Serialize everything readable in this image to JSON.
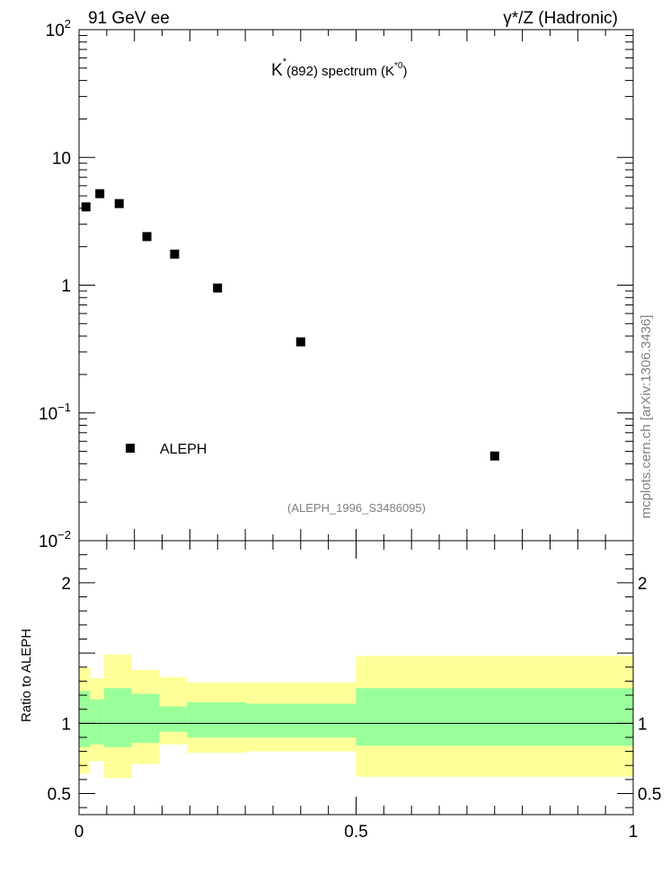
{
  "header": {
    "left": "91 GeV ee",
    "right": "γ*/Z (Hadronic)"
  },
  "side_label": "mcplots.cern.ch [arXiv:1306.3436]",
  "colors": {
    "marker": "#000000",
    "band_outer": "#ffff99",
    "band_inner": "#99ff99",
    "watermark_text": "#808080"
  },
  "chart_data": [
    {
      "type": "scatter",
      "title": "K*(892) spectrum (K*0)",
      "title_parts": {
        "base": "K",
        "sup1": "*",
        "rest": "(892) spectrum (K",
        "sup2": "*0",
        "close": ")"
      },
      "watermark": "(ALEPH_1996_S3486095)",
      "yscale": "log",
      "ylim": [
        0.01,
        100
      ],
      "xlim": [
        0,
        1
      ],
      "ytick_labels": [
        {
          "value": 100,
          "base": "10",
          "exp": "2"
        },
        {
          "value": 10,
          "base": "10",
          "exp": ""
        },
        {
          "value": 1,
          "base": "1",
          "exp": ""
        },
        {
          "value": 0.1,
          "base": "10",
          "exp": "−1"
        },
        {
          "value": 0.01,
          "base": "10",
          "exp": "−2"
        }
      ],
      "legend": {
        "position": "bottom-left",
        "label": "ALEPH"
      },
      "series": [
        {
          "name": "ALEPH",
          "x": [
            0.0125,
            0.0375,
            0.0725,
            0.1225,
            0.1725,
            0.25,
            0.4,
            0.75
          ],
          "y": [
            4.1,
            5.2,
            4.35,
            2.4,
            1.75,
            0.95,
            0.36,
            0.046
          ]
        }
      ]
    },
    {
      "type": "area",
      "ylabel": "Ratio to ALEPH",
      "ylim": [
        0.35,
        2.3
      ],
      "xlim": [
        0,
        1
      ],
      "ytick_labels": [
        {
          "value": 0.5,
          "label": "0.5"
        },
        {
          "value": 1,
          "label": "1"
        },
        {
          "value": 2,
          "label": "2"
        }
      ],
      "xtick_labels": [
        {
          "value": 0,
          "label": "0"
        },
        {
          "value": 0.5,
          "label": "0.5"
        },
        {
          "value": 1,
          "label": "1"
        }
      ],
      "reference_line": 1,
      "bins": [
        {
          "x0": 0.0,
          "x1": 0.02,
          "outer": [
            0.64,
            1.4
          ],
          "inner": [
            0.83,
            1.23
          ]
        },
        {
          "x0": 0.02,
          "x1": 0.045,
          "outer": [
            0.73,
            1.32
          ],
          "inner": [
            0.85,
            1.17
          ]
        },
        {
          "x0": 0.045,
          "x1": 0.095,
          "outer": [
            0.61,
            1.49
          ],
          "inner": [
            0.83,
            1.25
          ]
        },
        {
          "x0": 0.095,
          "x1": 0.145,
          "outer": [
            0.71,
            1.38
          ],
          "inner": [
            0.86,
            1.21
          ]
        },
        {
          "x0": 0.145,
          "x1": 0.195,
          "outer": [
            0.85,
            1.33
          ],
          "inner": [
            0.94,
            1.12
          ]
        },
        {
          "x0": 0.195,
          "x1": 0.3,
          "outer": [
            0.79,
            1.29
          ],
          "inner": [
            0.9,
            1.15
          ]
        },
        {
          "x0": 0.3,
          "x1": 0.5,
          "outer": [
            0.8,
            1.29
          ],
          "inner": [
            0.9,
            1.14
          ]
        },
        {
          "x0": 0.5,
          "x1": 1.0,
          "outer": [
            0.62,
            1.48
          ],
          "inner": [
            0.84,
            1.25
          ]
        }
      ]
    }
  ]
}
